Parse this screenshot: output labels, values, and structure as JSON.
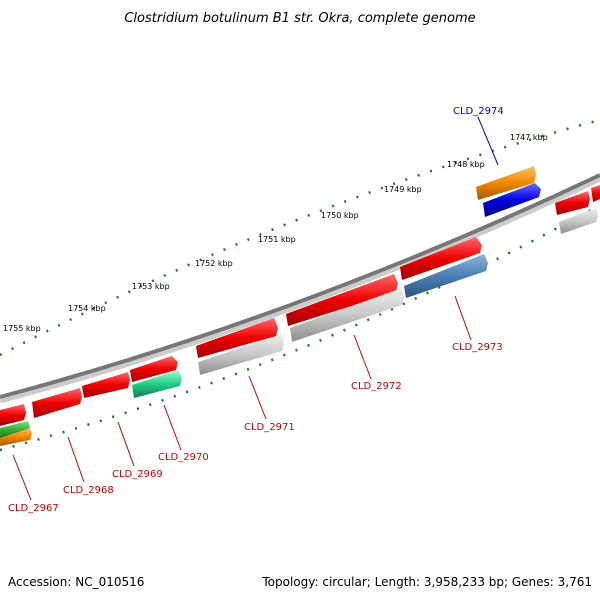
{
  "title": "Clostridium botulinum B1 str. Okra, complete genome",
  "footer": {
    "accession": "Accession: NC_010516",
    "topology": "Topology: circular; Length: 3,958,233 bp; Genes: 3,761"
  },
  "ticks": [
    "1747 kbp",
    "1748 kbp",
    "1749 kbp",
    "1750 kbp",
    "1751 kbp",
    "1752 kbp",
    "1753 kbp",
    "1754 kbp",
    "1755 kbp"
  ],
  "gene_labels": [
    "CLD_2974",
    "CLD_2973",
    "CLD_2972",
    "CLD_2971",
    "CLD_2970",
    "CLD_2969",
    "CLD_2968",
    "CLD_2967"
  ],
  "colors": {
    "backbone": "#777777",
    "ticks": "#1f7a1f",
    "cds": "#ee0000",
    "gene": "#c8c8c8",
    "highlight_blue": "#0000dd",
    "steel": "#4a80b0",
    "orange": "#ee8800",
    "teal": "#22cc88",
    "green": "#33aa33",
    "label_red": "#cc0000",
    "label_blue": "#0000cc"
  }
}
